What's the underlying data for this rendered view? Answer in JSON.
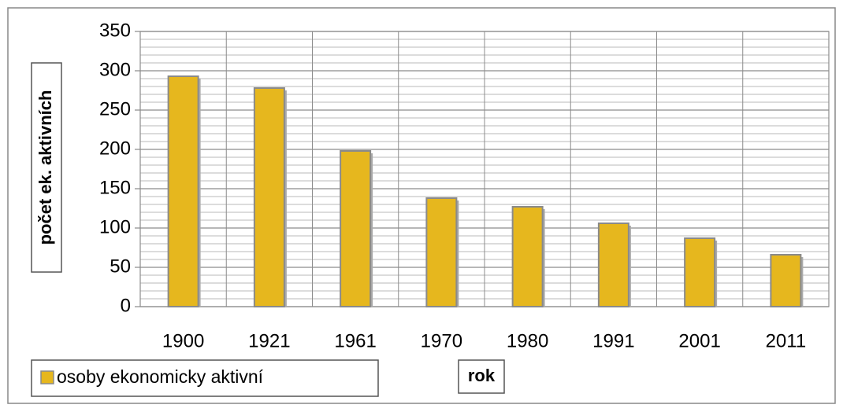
{
  "chart_data": {
    "type": "bar",
    "categories": [
      "1900",
      "1921",
      "1961",
      "1970",
      "1980",
      "1991",
      "2001",
      "2011"
    ],
    "series": [
      {
        "name": "osoby ekonomicky aktivní",
        "color": "#e6b71e",
        "values": [
          293,
          278,
          198,
          138,
          127,
          106,
          87,
          66
        ]
      }
    ],
    "x_label": "rok",
    "y_label": "počet ek. aktivních",
    "ylim": [
      0,
      350
    ],
    "yticks": [
      0,
      50,
      100,
      150,
      200,
      250,
      300,
      350
    ],
    "yminorticks": [
      10,
      20,
      30,
      40,
      60,
      70,
      80,
      90,
      110,
      120,
      130,
      140,
      160,
      170,
      180,
      190,
      210,
      220,
      230,
      240,
      260,
      270,
      280,
      290,
      310,
      320,
      330,
      340
    ],
    "grid": true,
    "legend": "bottom-left"
  }
}
